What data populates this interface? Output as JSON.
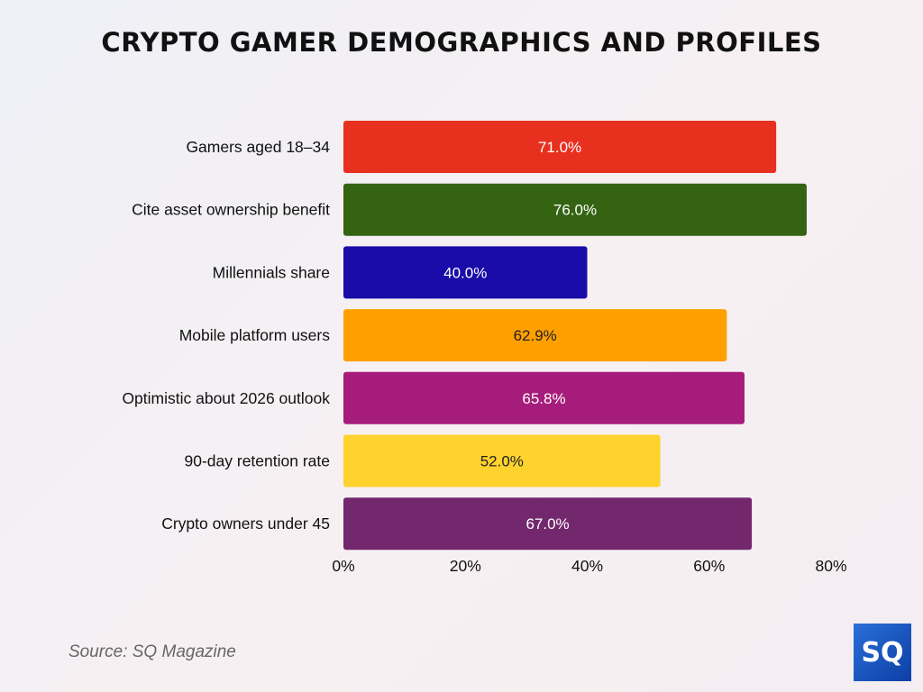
{
  "chart_data": {
    "type": "bar",
    "orientation": "horizontal",
    "title": "CRYPTO GAMER DEMOGRAPHICS AND PROFILES",
    "categories": [
      "Gamers aged 18–34",
      "Cite asset ownership benefit",
      "Millennials share",
      "Mobile platform users",
      "Optimistic about 2026 outlook",
      "90-day retention rate",
      "Crypto owners under 45"
    ],
    "values": [
      71.0,
      76.0,
      40.0,
      62.9,
      65.8,
      52.0,
      67.0
    ],
    "value_labels": [
      "71.0%",
      "76.0%",
      "40.0%",
      "62.9%",
      "65.8%",
      "52.0%",
      "67.0%"
    ],
    "colors": [
      "#e8301f",
      "#346312",
      "#1a0ca8",
      "#ffa000",
      "#a61c7a",
      "#ffd22e",
      "#73286e"
    ],
    "label_colors": [
      "#ffffff",
      "#ffffff",
      "#ffffff",
      "#222222",
      "#ffffff",
      "#222222",
      "#ffffff"
    ],
    "xticks": [
      0,
      20,
      40,
      60,
      80
    ],
    "xtick_labels": [
      "0%",
      "20%",
      "40%",
      "60%",
      "80%"
    ],
    "xlim": [
      0,
      80
    ],
    "xlabel": "",
    "ylabel": "",
    "grid": false
  },
  "source": "Source: SQ Magazine",
  "logo_text": "SQ"
}
